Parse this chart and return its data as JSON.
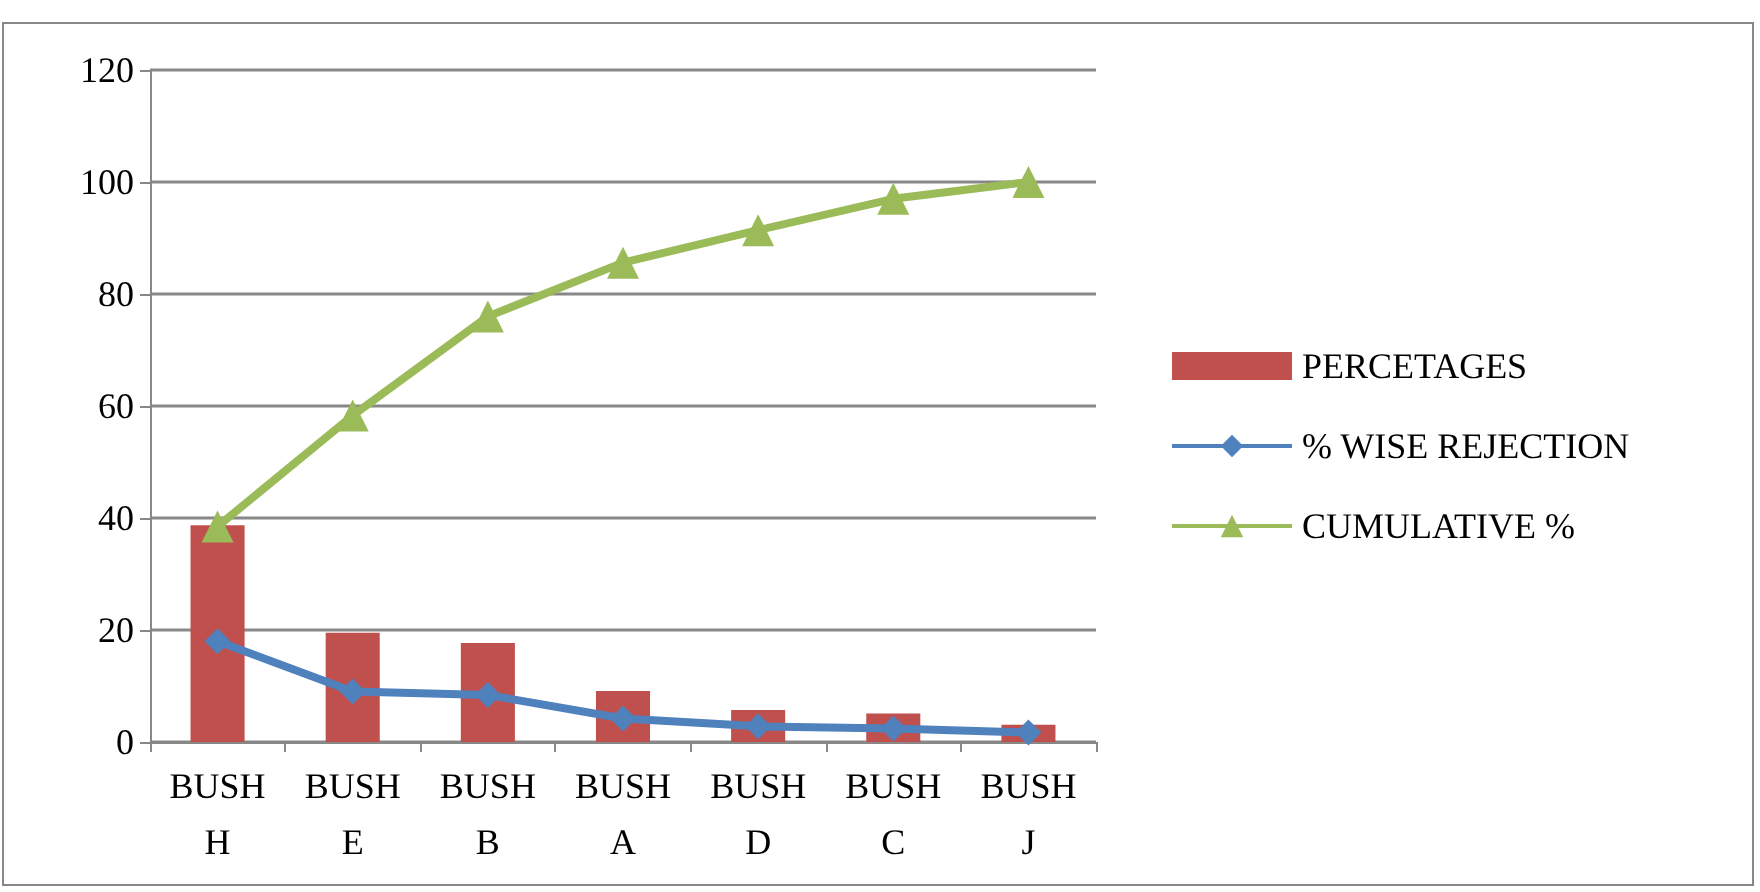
{
  "chart_data": {
    "type": "bar",
    "categories": [
      "BUSH\nH",
      "BUSH\nE",
      "BUSH\nB",
      "BUSH\nA",
      "BUSH\nD",
      "BUSH\nC",
      "BUSH\nJ"
    ],
    "series": [
      {
        "name": "PERCETAGES",
        "color": "#c0504d",
        "values": [
          38.7,
          19.5,
          17.7,
          9.1,
          5.7,
          5.1,
          3.1
        ]
      },
      {
        "name": "% WISE REJECTION",
        "type": "line",
        "marker": "diamond",
        "color": "#4f81bd",
        "values": [
          18,
          9,
          8.4,
          4.2,
          2.8,
          2.4,
          1.7
        ]
      },
      {
        "name": "CUMULATIVE %",
        "type": "line",
        "marker": "triangle",
        "color": "#9bbb59",
        "values": [
          38.5,
          58.3,
          76,
          85.6,
          91.4,
          97,
          100
        ]
      }
    ],
    "ylim": [
      0,
      120
    ],
    "yticks": [
      0,
      20,
      40,
      60,
      80,
      100,
      120
    ],
    "grid": "y",
    "legend": "right"
  }
}
